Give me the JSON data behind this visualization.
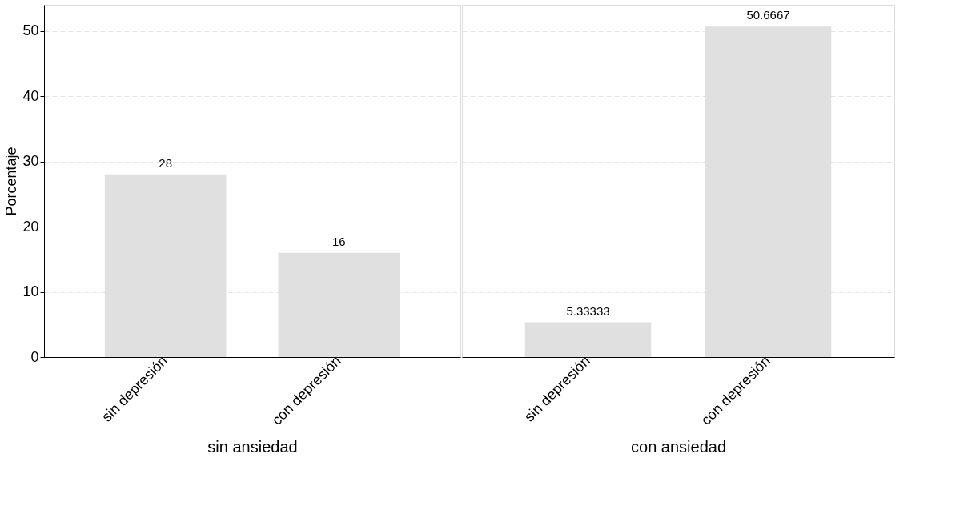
{
  "chart_data": [
    {
      "type": "bar",
      "xlabel": "sin ansiedad",
      "ylabel": "Porcentaje",
      "categories": [
        "sin depresión",
        "con depresión"
      ],
      "values": [
        28,
        16
      ],
      "color": "#e0e0e0",
      "ylim": [
        0,
        54
      ],
      "yticks": [
        0,
        10,
        20,
        30,
        40,
        50
      ],
      "grid": "y",
      "data_labels": true
    },
    {
      "type": "bar",
      "xlabel": "con ansiedad",
      "categories": [
        "sin depresión",
        "con depresión"
      ],
      "values": [
        5.33333,
        50.6667
      ],
      "color": "#e0e0e0",
      "ylim": [
        0,
        54
      ],
      "yticks": [
        0,
        10,
        20,
        30,
        40,
        50
      ],
      "grid": "y",
      "data_labels": true,
      "tick_labels": "x"
    }
  ]
}
